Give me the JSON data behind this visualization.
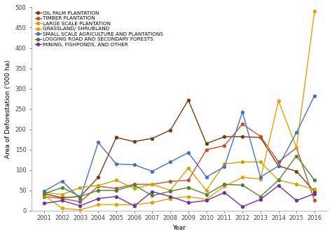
{
  "years": [
    2001,
    2002,
    2003,
    2004,
    2005,
    2006,
    2007,
    2008,
    2009,
    2010,
    2011,
    2012,
    2013,
    2014,
    2015,
    2016
  ],
  "series": [
    {
      "label": "OIL PALM PLANTATION",
      "color": "#7B3A10",
      "marker": "o",
      "values": [
        42,
        32,
        35,
        82,
        180,
        170,
        178,
        198,
        272,
        165,
        182,
        182,
        180,
        110,
        97,
        47
      ]
    },
    {
      "label": "TIMBER PLANTATION",
      "color": "#C0522A",
      "marker": "o",
      "values": [
        35,
        30,
        22,
        60,
        55,
        65,
        65,
        72,
        75,
        150,
        160,
        213,
        183,
        120,
        155,
        25
      ]
    },
    {
      "label": "LARGE SCALE PLANTATION",
      "color": "#C8A800",
      "marker": "o",
      "values": [
        45,
        40,
        57,
        62,
        75,
        55,
        65,
        50,
        105,
        50,
        115,
        120,
        120,
        75,
        65,
        53
      ]
    },
    {
      "label": "GRASSLAND/ SHRUBLAND",
      "color": "#E8A000",
      "marker": "o",
      "values": [
        38,
        6,
        2,
        15,
        15,
        15,
        20,
        30,
        35,
        28,
        60,
        82,
        78,
        270,
        155,
        490
      ]
    },
    {
      "label": "SMALL SCALE AGRICULTURE AND PLANTATIONS",
      "color": "#4472C4",
      "marker": "o",
      "values": [
        48,
        73,
        30,
        168,
        115,
        113,
        97,
        120,
        143,
        83,
        108,
        243,
        83,
        110,
        192,
        283
      ]
    },
    {
      "label": "LOGGING ROAD AND SECONDARY FORESTS",
      "color": "#548235",
      "marker": "o",
      "values": [
        42,
        57,
        35,
        50,
        50,
        63,
        37,
        48,
        57,
        40,
        65,
        63,
        35,
        75,
        135,
        75
      ]
    },
    {
      "label": "MINING, FISHPONDS, AND OTHER",
      "color": "#7030A0",
      "marker": "o",
      "values": [
        18,
        25,
        12,
        30,
        35,
        12,
        47,
        35,
        20,
        25,
        45,
        10,
        28,
        62,
        25,
        42
      ]
    }
  ],
  "ylim": [
    0,
    500
  ],
  "yticks": [
    0,
    50,
    100,
    150,
    200,
    250,
    300,
    350,
    400,
    450,
    500
  ],
  "xlabel": "Year",
  "ylabel": "Area of Deforestation ('000 ha)",
  "bg_color": "#ffffff",
  "axis_fontsize": 6.5,
  "legend_fontsize": 5.2,
  "tick_fontsize": 6.0,
  "linewidth": 1.0,
  "markersize": 2.8
}
